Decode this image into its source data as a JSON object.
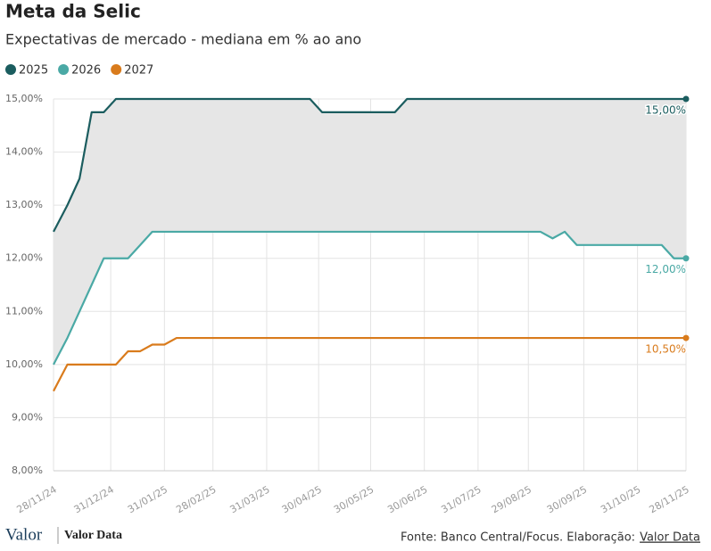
{
  "chart_data": {
    "type": "line",
    "title": "Meta da Selic",
    "subtitle": "Expectativas de mercado - mediana em % ao ano",
    "x": [
      "28/11/24",
      "06/12/24",
      "13/12/24",
      "20/12/24",
      "27/12/24",
      "03/01/25",
      "10/01/25",
      "17/01/25",
      "24/01/25",
      "31/01/25",
      "07/02/25",
      "14/02/25",
      "21/02/25",
      "28/02/25",
      "07/03/25",
      "14/03/25",
      "21/03/25",
      "28/03/25",
      "04/04/25",
      "11/04/25",
      "18/04/25",
      "25/04/25",
      "02/05/25",
      "09/05/25",
      "16/05/25",
      "23/05/25",
      "30/05/25",
      "06/06/25",
      "13/06/25",
      "20/06/25",
      "27/06/25",
      "04/07/25",
      "11/07/25",
      "18/07/25",
      "25/07/25",
      "01/08/25",
      "08/08/25",
      "15/08/25",
      "22/08/25",
      "29/08/25",
      "05/09/25",
      "12/09/25",
      "19/09/25",
      "26/09/25",
      "03/10/25",
      "10/10/25",
      "17/10/25",
      "24/10/25",
      "31/10/25",
      "07/11/25",
      "14/11/25",
      "21/11/25",
      "28/11/25"
    ],
    "series": [
      {
        "name": "2025",
        "color": "#1b5d5f",
        "values": [
          12.5,
          13.0,
          13.5,
          14.75,
          14.75,
          15,
          15,
          15,
          15,
          15,
          15,
          15,
          15,
          15,
          15,
          15,
          15,
          15,
          15,
          15,
          15,
          15,
          14.75,
          14.75,
          14.75,
          14.75,
          14.75,
          14.75,
          14.75,
          15,
          15,
          15,
          15,
          15,
          15,
          15,
          15,
          15,
          15,
          15,
          15,
          15,
          15,
          15,
          15,
          15,
          15,
          15,
          15,
          15,
          15,
          15,
          15
        ],
        "value_labels": [
          null,
          null,
          null,
          null,
          null,
          null,
          null,
          null,
          null,
          null,
          null,
          null,
          null,
          null,
          null,
          null,
          null,
          null,
          null,
          null,
          null,
          null,
          null,
          null,
          null,
          null,
          null,
          null,
          null,
          null,
          null,
          null,
          null,
          null,
          null,
          null,
          null,
          null,
          null,
          null,
          null,
          null,
          null,
          null,
          null,
          null,
          null,
          null,
          null,
          null,
          null,
          null,
          "15,00%"
        ]
      },
      {
        "name": "2026",
        "color": "#4aa9a5",
        "values": [
          10.0,
          10.5,
          11.0,
          11.5,
          12.0,
          12.0,
          12.0,
          12.25,
          12.5,
          12.5,
          12.5,
          12.5,
          12.5,
          12.5,
          12.5,
          12.5,
          12.5,
          12.5,
          12.5,
          12.5,
          12.5,
          12.5,
          12.5,
          12.5,
          12.5,
          12.5,
          12.5,
          12.5,
          12.5,
          12.5,
          12.5,
          12.5,
          12.5,
          12.5,
          12.5,
          12.5,
          12.5,
          12.5,
          12.5,
          12.5,
          12.5,
          12.375,
          12.5,
          12.25,
          12.25,
          12.25,
          12.25,
          12.25,
          12.25,
          12.25,
          12.25,
          12.0,
          12.0
        ],
        "value_labels": [
          null,
          null,
          null,
          null,
          null,
          null,
          null,
          null,
          null,
          null,
          null,
          null,
          null,
          null,
          null,
          null,
          null,
          null,
          null,
          null,
          null,
          null,
          null,
          null,
          null,
          null,
          null,
          null,
          null,
          null,
          null,
          null,
          null,
          null,
          null,
          null,
          null,
          null,
          null,
          null,
          null,
          null,
          null,
          null,
          null,
          null,
          null,
          null,
          null,
          null,
          null,
          null,
          "12,00%"
        ]
      },
      {
        "name": "2027",
        "color": "#d97b1c",
        "values": [
          9.5,
          10.0,
          10.0,
          10.0,
          10.0,
          10.0,
          10.25,
          10.25,
          10.375,
          10.375,
          10.5,
          10.5,
          10.5,
          10.5,
          10.5,
          10.5,
          10.5,
          10.5,
          10.5,
          10.5,
          10.5,
          10.5,
          10.5,
          10.5,
          10.5,
          10.5,
          10.5,
          10.5,
          10.5,
          10.5,
          10.5,
          10.5,
          10.5,
          10.5,
          10.5,
          10.5,
          10.5,
          10.5,
          10.5,
          10.5,
          10.5,
          10.5,
          10.5,
          10.5,
          10.5,
          10.5,
          10.5,
          10.5,
          10.5,
          10.5,
          10.5,
          10.5,
          10.5
        ],
        "value_labels": [
          null,
          null,
          null,
          null,
          null,
          null,
          null,
          null,
          null,
          null,
          null,
          null,
          null,
          null,
          null,
          null,
          null,
          null,
          null,
          null,
          null,
          null,
          null,
          null,
          null,
          null,
          null,
          null,
          null,
          null,
          null,
          null,
          null,
          null,
          null,
          null,
          null,
          null,
          null,
          null,
          null,
          null,
          null,
          null,
          null,
          null,
          null,
          null,
          null,
          null,
          null,
          null,
          "10,50%"
        ]
      }
    ],
    "fill_between": [
      0,
      1
    ],
    "fill_color": "#e6e6e6",
    "xlim": [
      "28/11/24",
      "28/11/25"
    ],
    "xticks": [
      "28/11/24",
      "31/12/24",
      "31/01/25",
      "28/02/25",
      "31/03/25",
      "30/04/25",
      "30/05/25",
      "30/06/25",
      "31/07/25",
      "29/08/25",
      "30/09/25",
      "31/10/25",
      "28/11/25"
    ],
    "ylim": [
      8,
      15
    ],
    "yticks": [
      {
        "value": 8,
        "label": "8,00%"
      },
      {
        "value": 9,
        "label": "9,00%"
      },
      {
        "value": 10,
        "label": "10,00%"
      },
      {
        "value": 11,
        "label": "11,00%"
      },
      {
        "value": 12,
        "label": "12,00%"
      },
      {
        "value": 13,
        "label": "13,00%"
      },
      {
        "value": 14,
        "label": "14,00%"
      },
      {
        "value": 15,
        "label": "15,00%"
      }
    ],
    "grid": true
  },
  "footer": {
    "logo": "Valor",
    "brand": "Valor Data",
    "source": "Fonte: Banco Central/Focus. Elaboração:",
    "source_link": "Valor Data"
  }
}
